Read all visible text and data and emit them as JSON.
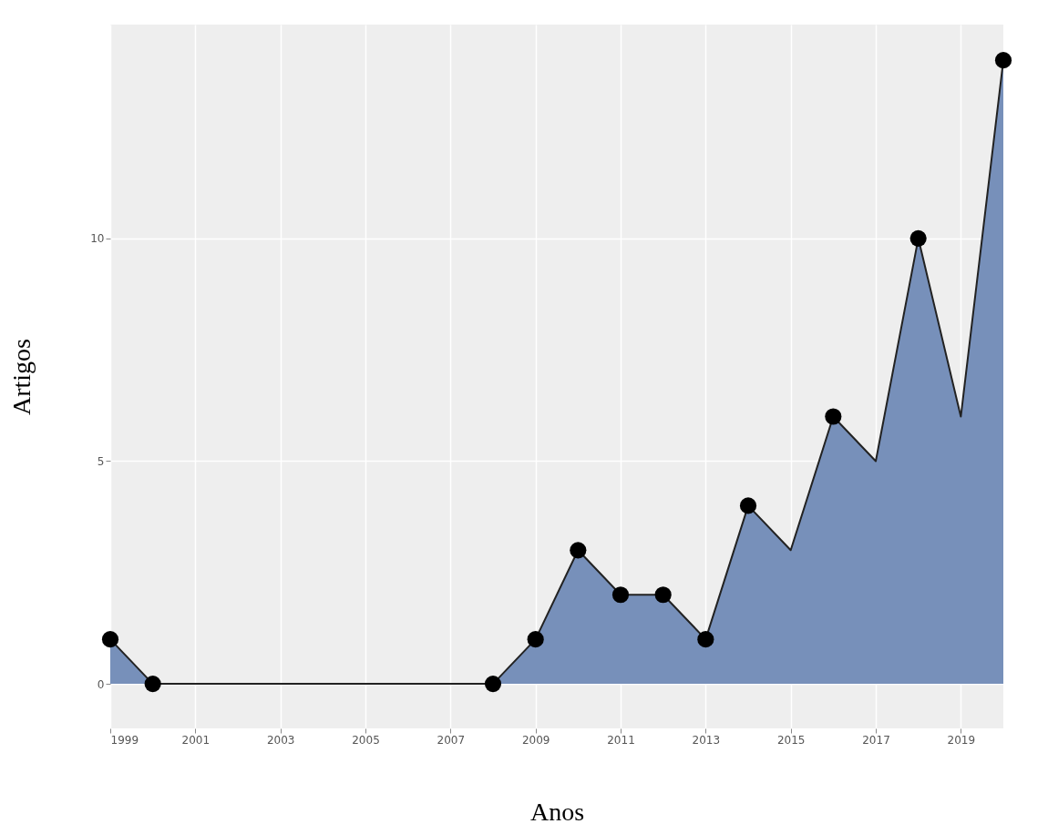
{
  "chart_data": {
    "type": "area",
    "xlabel": "Anos",
    "ylabel": "Artigos",
    "x": [
      1999,
      2000,
      2001,
      2002,
      2003,
      2004,
      2005,
      2006,
      2007,
      2008,
      2009,
      2010,
      2011,
      2012,
      2013,
      2014,
      2015,
      2016,
      2017,
      2018,
      2019,
      2020
    ],
    "series": [
      {
        "color": "#7790ba",
        "values": [
          1,
          0,
          0,
          0,
          0,
          0,
          0,
          0,
          0,
          0,
          1,
          3,
          2,
          2,
          1,
          4,
          3,
          6,
          5,
          10,
          6,
          14
        ]
      },
      {
        "type": "scatter",
        "marker": "circle",
        "color": "#000000",
        "x": [
          1999,
          2000,
          2008,
          2009,
          2010,
          2011,
          2012,
          2013,
          2014,
          2016,
          2018,
          2020
        ],
        "values": [
          1,
          0,
          0,
          1,
          3,
          2,
          2,
          1,
          4,
          6,
          10,
          14
        ]
      }
    ],
    "xlim": [
      1999,
      2020
    ],
    "xticks": [
      1999,
      2001,
      2003,
      2005,
      2007,
      2009,
      2011,
      2013,
      2015,
      2017,
      2019
    ],
    "ylim": [
      -1,
      14.8
    ],
    "yticks": [
      0,
      5,
      10
    ],
    "grid": true
  }
}
